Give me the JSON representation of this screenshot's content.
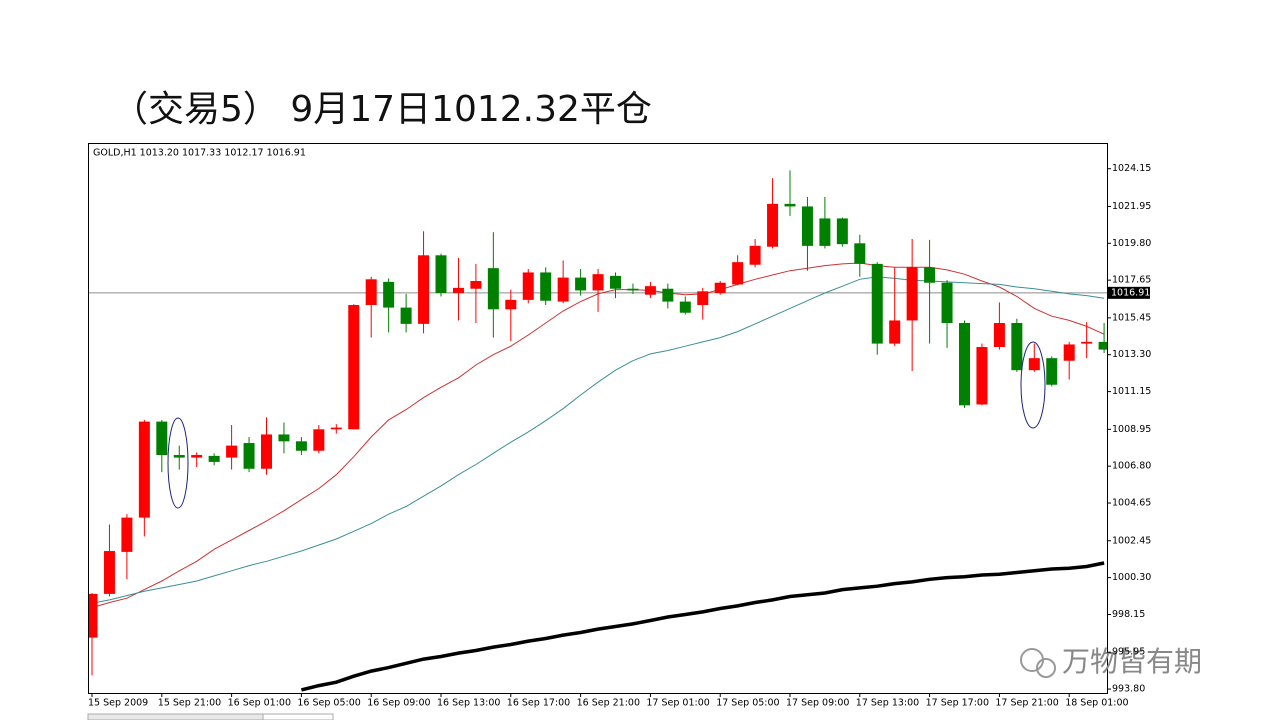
{
  "chart_data": {
    "type": "candlestick",
    "title": "（交易5） 9月17日1012.32平仓",
    "header": "GOLD,H1 1013.20 1017.33 1012.17 1016.91",
    "watermark": "万物皆有期",
    "up_color": "#ff0000",
    "down_color": "#008000",
    "categories": [
      "15 Sep 2009",
      null,
      null,
      null,
      "15 Sep 21:00",
      null,
      null,
      null,
      "16 Sep 01:00",
      null,
      null,
      null,
      "16 Sep 05:00",
      null,
      null,
      null,
      "16 Sep 09:00",
      null,
      null,
      null,
      "16 Sep 13:00",
      null,
      null,
      null,
      "16 Sep 17:00",
      null,
      null,
      null,
      "16 Sep 21:00",
      null,
      null,
      null,
      "17 Sep 01:00",
      null,
      null,
      null,
      "17 Sep 05:00",
      null,
      null,
      null,
      "17 Sep 09:00",
      null,
      null,
      null,
      "17 Sep 13:00",
      null,
      null,
      null,
      "17 Sep 17:00",
      null,
      null,
      null,
      "17 Sep 21:00",
      null,
      null,
      null,
      "18 Sep 01:00",
      null,
      null
    ],
    "open": [
      996.8,
      999.35,
      1001.8,
      1003.8,
      1009.4,
      1007.45,
      1007.3,
      1007.4,
      1007.3,
      1008.15,
      1006.65,
      1008.65,
      1008.25,
      1007.7,
      1008.95,
      1008.95,
      1016.2,
      1017.55,
      1016.05,
      1015.1,
      1019.1,
      1016.9,
      1017.15,
      1018.35,
      1015.95,
      1016.5,
      1018.1,
      1016.4,
      1017.8,
      1017.05,
      1017.9,
      1017.15,
      1016.8,
      1017.15,
      1016.4,
      1016.2,
      1016.9,
      1017.4,
      1018.55,
      1019.6,
      1022.1,
      1021.95,
      1021.25,
      1021.25,
      1019.8,
      1018.6,
      1013.95,
      1015.3,
      1018.4,
      1017.5,
      1015.15,
      1010.4,
      1013.75,
      1015.15,
      1012.4,
      1013.1,
      1012.95,
      1013.95,
      1014.05
    ],
    "high": [
      999.4,
      1003.4,
      1004.0,
      1009.5,
      1009.5,
      1008.0,
      1007.6,
      1007.55,
      1009.2,
      1008.5,
      1009.65,
      1009.35,
      1008.5,
      1009.2,
      1009.25,
      1016.25,
      1017.85,
      1017.75,
      1016.85,
      1020.5,
      1019.2,
      1018.95,
      1018.6,
      1020.45,
      1017.1,
      1018.3,
      1018.4,
      1018.8,
      1018.3,
      1018.3,
      1018.1,
      1017.45,
      1017.55,
      1017.45,
      1016.7,
      1017.2,
      1017.6,
      1019.1,
      1020.05,
      1023.6,
      1024.05,
      1022.5,
      1022.5,
      1021.3,
      1020.3,
      1018.7,
      1018.4,
      1020.05,
      1020.0,
      1017.65,
      1015.3,
      1013.95,
      1016.35,
      1015.4,
      1013.95,
      1013.2,
      1014.05,
      1015.2,
      1015.15
    ],
    "low": [
      994.6,
      999.2,
      1000.2,
      1002.7,
      1006.45,
      1006.6,
      1006.75,
      1006.85,
      1006.6,
      1006.45,
      1006.3,
      1007.55,
      1007.45,
      1007.55,
      1008.7,
      1008.95,
      1014.3,
      1014.6,
      1014.6,
      1014.55,
      1016.7,
      1015.3,
      1015.15,
      1014.3,
      1014.1,
      1016.3,
      1016.2,
      1016.3,
      1016.75,
      1015.8,
      1016.6,
      1016.85,
      1016.6,
      1016.0,
      1015.65,
      1015.35,
      1016.8,
      1017.35,
      1018.4,
      1019.5,
      1021.4,
      1018.2,
      1019.5,
      1019.6,
      1017.85,
      1013.3,
      1013.8,
      1012.35,
      1013.95,
      1013.7,
      1010.2,
      1010.35,
      1013.6,
      1012.3,
      1012.3,
      1011.45,
      1011.85,
      1013.1,
      1013.4
    ],
    "close": [
      999.35,
      1001.85,
      1003.8,
      1009.4,
      1007.45,
      1007.3,
      1007.45,
      1007.05,
      1008.0,
      1006.65,
      1008.65,
      1008.25,
      1007.7,
      1008.95,
      1009.05,
      1016.2,
      1017.7,
      1016.05,
      1015.1,
      1019.1,
      1016.9,
      1017.2,
      1017.6,
      1015.95,
      1016.5,
      1018.1,
      1016.45,
      1017.8,
      1017.05,
      1018.0,
      1017.15,
      1017.05,
      1017.3,
      1016.4,
      1015.75,
      1017.0,
      1017.5,
      1018.7,
      1019.65,
      1022.1,
      1021.95,
      1019.65,
      1019.65,
      1019.75,
      1018.6,
      1013.95,
      1015.3,
      1018.4,
      1017.5,
      1015.15,
      1010.35,
      1013.75,
      1015.15,
      1012.4,
      1013.1,
      1011.55,
      1013.9,
      1014.05,
      1013.6
    ],
    "lines": [
      {
        "color": "#cc3333",
        "values": [
          998.55,
          998.85,
          999.1,
          999.6,
          1000.1,
          1000.7,
          1001.25,
          1001.95,
          1002.5,
          1003.05,
          1003.6,
          1004.2,
          1004.85,
          1005.5,
          1006.3,
          1007.35,
          1008.5,
          1009.5,
          1010.1,
          1010.8,
          1011.4,
          1011.95,
          1012.7,
          1013.3,
          1013.8,
          1014.45,
          1015.15,
          1015.85,
          1016.4,
          1016.85,
          1017.1,
          1017.1,
          1017.05,
          1016.9,
          1016.8,
          1016.85,
          1017.1,
          1017.4,
          1017.7,
          1017.95,
          1018.2,
          1018.35,
          1018.5,
          1018.6,
          1018.65,
          1018.5,
          1018.4,
          1018.4,
          1018.4,
          1018.25,
          1018.0,
          1017.6,
          1017.25,
          1016.7,
          1016.0,
          1015.55,
          1015.3,
          1014.95,
          1014.5
        ]
      },
      {
        "color": "#3a8f96",
        "values": [
          998.8,
          999.0,
          999.25,
          999.5,
          999.7,
          999.9,
          1000.1,
          1000.4,
          1000.7,
          1001.0,
          1001.25,
          1001.55,
          1001.85,
          1002.2,
          1002.55,
          1003.0,
          1003.45,
          1004.0,
          1004.45,
          1005.05,
          1005.65,
          1006.3,
          1006.9,
          1007.55,
          1008.2,
          1008.8,
          1009.45,
          1010.15,
          1010.95,
          1011.7,
          1012.4,
          1012.95,
          1013.35,
          1013.55,
          1013.8,
          1014.05,
          1014.3,
          1014.65,
          1015.1,
          1015.55,
          1016.0,
          1016.45,
          1016.9,
          1017.3,
          1017.7,
          1017.85,
          1017.75,
          1017.65,
          1017.6,
          1017.55,
          1017.5,
          1017.45,
          1017.4,
          1017.25,
          1017.15,
          1017.0,
          1016.85,
          1016.75,
          1016.6
        ]
      },
      {
        "color": "#000000",
        "values": [
          null,
          null,
          null,
          null,
          null,
          null,
          null,
          null,
          null,
          null,
          null,
          null,
          993.75,
          994.0,
          994.2,
          994.55,
          994.85,
          995.05,
          995.3,
          995.55,
          995.7,
          995.9,
          996.05,
          996.25,
          996.4,
          996.6,
          996.75,
          996.95,
          997.1,
          997.3,
          997.45,
          997.6,
          997.8,
          998.0,
          998.15,
          998.3,
          998.5,
          998.65,
          998.85,
          999.0,
          999.2,
          999.3,
          999.4,
          999.6,
          999.7,
          999.8,
          999.95,
          1000.05,
          1000.2,
          1000.3,
          1000.35,
          1000.45,
          1000.5,
          1000.6,
          1000.7,
          1000.8,
          1000.85,
          1000.95,
          1001.15
        ]
      }
    ],
    "current_price": 1016.91,
    "ylim": [
      993.57,
      1025.65
    ],
    "yticks": [
      {
        "value": 993.8,
        "label": "993.80"
      },
      995.95,
      998.15,
      {
        "value": 1000.3,
        "label": "1000.30"
      },
      1002.45,
      1004.65,
      {
        "value": 1006.8,
        "label": "1006.80"
      },
      1008.95,
      1011.15,
      {
        "value": 1013.3,
        "label": "1013.30"
      },
      1015.45,
      1017.65,
      {
        "value": 1019.8,
        "label": "1019.80"
      },
      1021.95,
      1024.15
    ]
  }
}
